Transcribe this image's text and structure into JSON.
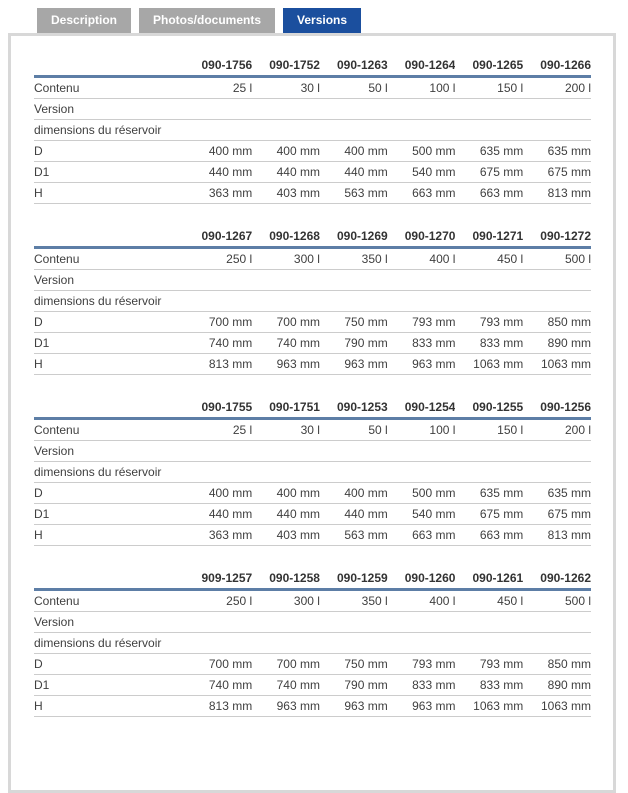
{
  "tabs": [
    {
      "label": "Description",
      "active": false
    },
    {
      "label": "Photos/documents",
      "active": false
    },
    {
      "label": "Versions",
      "active": true
    }
  ],
  "row_labels": {
    "contenu": "Contenu",
    "version": "Version",
    "dimensions": "dimensions du réservoir",
    "d": "D",
    "d1": "D1",
    "h": "H"
  },
  "tables": [
    {
      "codes": [
        "090-1756",
        "090-1752",
        "090-1263",
        "090-1264",
        "090-1265",
        "090-1266"
      ],
      "contenu": [
        "25 l",
        "30 l",
        "50 l",
        "100 l",
        "150 l",
        "200 l"
      ],
      "d": [
        "400 mm",
        "400 mm",
        "400 mm",
        "500 mm",
        "635 mm",
        "635 mm"
      ],
      "d1": [
        "440 mm",
        "440 mm",
        "440 mm",
        "540 mm",
        "675 mm",
        "675 mm"
      ],
      "h": [
        "363 mm",
        "403 mm",
        "563 mm",
        "663 mm",
        "663 mm",
        "813 mm"
      ]
    },
    {
      "codes": [
        "090-1267",
        "090-1268",
        "090-1269",
        "090-1270",
        "090-1271",
        "090-1272"
      ],
      "contenu": [
        "250 l",
        "300 l",
        "350 l",
        "400 l",
        "450 l",
        "500 l"
      ],
      "d": [
        "700 mm",
        "700 mm",
        "750 mm",
        "793 mm",
        "793 mm",
        "850 mm"
      ],
      "d1": [
        "740 mm",
        "740 mm",
        "790 mm",
        "833 mm",
        "833 mm",
        "890 mm"
      ],
      "h": [
        "813 mm",
        "963 mm",
        "963 mm",
        "963 mm",
        "1063 mm",
        "1063 mm"
      ]
    },
    {
      "codes": [
        "090-1755",
        "090-1751",
        "090-1253",
        "090-1254",
        "090-1255",
        "090-1256"
      ],
      "contenu": [
        "25 l",
        "30 l",
        "50 l",
        "100 l",
        "150 l",
        "200 l"
      ],
      "d": [
        "400 mm",
        "400 mm",
        "400 mm",
        "500 mm",
        "635 mm",
        "635 mm"
      ],
      "d1": [
        "440 mm",
        "440 mm",
        "440 mm",
        "540 mm",
        "675 mm",
        "675 mm"
      ],
      "h": [
        "363 mm",
        "403 mm",
        "563 mm",
        "663 mm",
        "663 mm",
        "813 mm"
      ]
    },
    {
      "codes": [
        "909-1257",
        "090-1258",
        "090-1259",
        "090-1260",
        "090-1261",
        "090-1262"
      ],
      "contenu": [
        "250 l",
        "300 l",
        "350 l",
        "400 l",
        "450 l",
        "500 l"
      ],
      "d": [
        "700 mm",
        "700 mm",
        "750 mm",
        "793 mm",
        "793 mm",
        "850 mm"
      ],
      "d1": [
        "740 mm",
        "740 mm",
        "790 mm",
        "833 mm",
        "833 mm",
        "890 mm"
      ],
      "h": [
        "813 mm",
        "963 mm",
        "963 mm",
        "963 mm",
        "1063 mm",
        "1063 mm"
      ]
    }
  ],
  "colors": {
    "tab_inactive": "#a7a7a7",
    "tab_active": "#1b4f9e",
    "tab_text": "#ffffff",
    "panel_border": "#d8d8d8",
    "header_rule": "#5d7ea6",
    "row_rule": "#cccccc",
    "text": "#3f3f3f"
  }
}
